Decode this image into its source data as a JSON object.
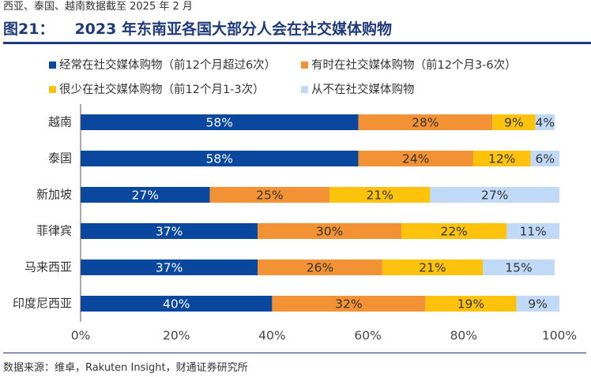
{
  "header": {
    "note": "西亚、泰国、越南数据截至 2025 年 2 月",
    "figure_label": "图21：",
    "figure_title": "2023 年东南亚各国大部分人会在社交媒体购物"
  },
  "footer": {
    "source": "数据来源：维卓，Rakuten Insight，财通证券研究所"
  },
  "chart_data": {
    "type": "bar",
    "orientation": "horizontal",
    "stacked": true,
    "percent_stacked": true,
    "title": "2023 年东南亚各国大部分人会在社交媒体购物",
    "xlabel": "",
    "ylabel": "",
    "xlim": [
      0,
      100
    ],
    "x_ticks": [
      "0%",
      "20%",
      "40%",
      "60%",
      "80%",
      "100%"
    ],
    "grid": false,
    "legend_position": "top",
    "categories": [
      "越南",
      "泰国",
      "新加坡",
      "菲律宾",
      "马来西亚",
      "印度尼西亚"
    ],
    "series": [
      {
        "name": "经常在社交媒体购物（前12个月超过6次）",
        "color": "#0a48a0",
        "label_color": "#ffffff",
        "values": [
          58,
          58,
          27,
          37,
          37,
          40
        ],
        "labels": [
          "58%",
          "58%",
          "27%",
          "37%",
          "37%",
          "40%"
        ]
      },
      {
        "name": "有时在社交媒体购物（前12个月3-6次）",
        "color": "#f39234",
        "label_color": "#333333",
        "values": [
          28,
          24,
          25,
          30,
          26,
          32
        ],
        "labels": [
          "28%",
          "24%",
          "25%",
          "30%",
          "26%",
          "32%"
        ]
      },
      {
        "name": "很少在社交媒体购物（前12个月1-3次）",
        "color": "#fcc20c",
        "label_color": "#333333",
        "values": [
          9,
          12,
          21,
          22,
          21,
          19
        ],
        "labels": [
          "9%",
          "12%",
          "21%",
          "22%",
          "21%",
          "19%"
        ]
      },
      {
        "name": "从不在社交媒体购物",
        "color": "#bfd9f6",
        "label_color": "#333333",
        "values": [
          4,
          6,
          27,
          11,
          15,
          9
        ],
        "labels": [
          "4%",
          "6%",
          "27%",
          "11%",
          "15%",
          "9%"
        ]
      }
    ]
  }
}
